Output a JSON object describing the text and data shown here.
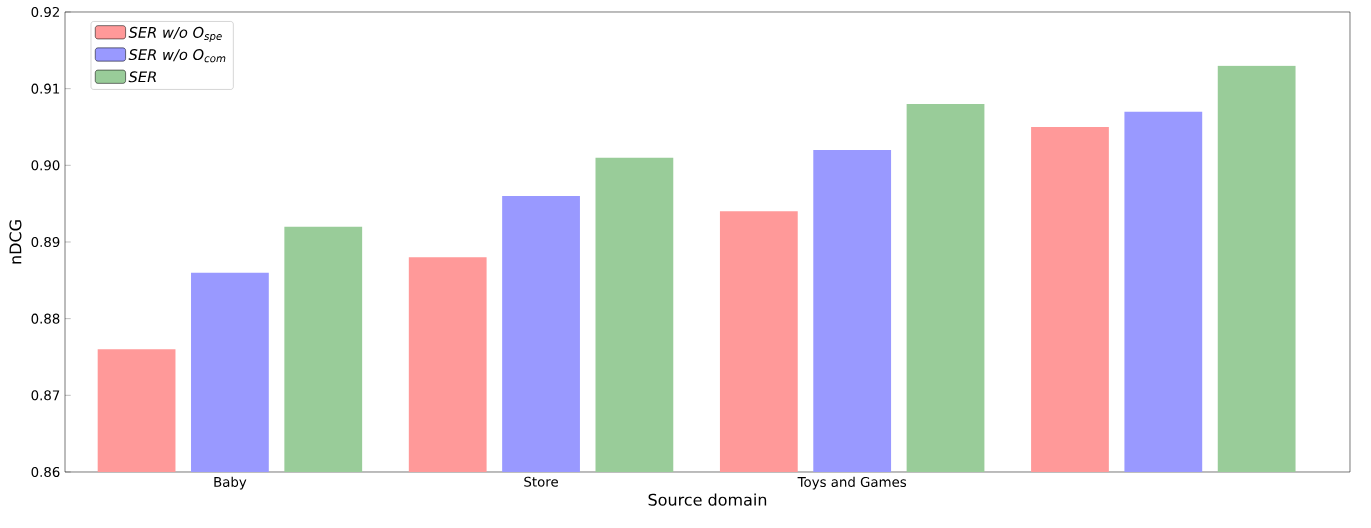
{
  "chart_data": {
    "type": "bar",
    "xlabel": "Source domain",
    "ylabel": "nDCG",
    "categories": [
      "Baby",
      "Store",
      "Toys and Games",
      null
    ],
    "series": [
      {
        "name": "SER w/o O$_{spe}$",
        "color": "#ff9999",
        "values": [
          0.876,
          0.888,
          0.894,
          0.905
        ]
      },
      {
        "name": "SER w/o O$_{com}$",
        "color": "#9999ff",
        "values": [
          0.886,
          0.896,
          0.902,
          0.907
        ]
      },
      {
        "name": "SER",
        "color": "#99cc99",
        "values": [
          0.892,
          0.901,
          0.908,
          0.913
        ]
      }
    ],
    "ylim": [
      0.86,
      0.92
    ],
    "yticks": [
      0.86,
      0.87,
      0.88,
      0.89,
      {
        "value": 0.9,
        "label": "0.90"
      },
      0.91,
      0.92
    ],
    "legend": "top left",
    "grid": false
  }
}
